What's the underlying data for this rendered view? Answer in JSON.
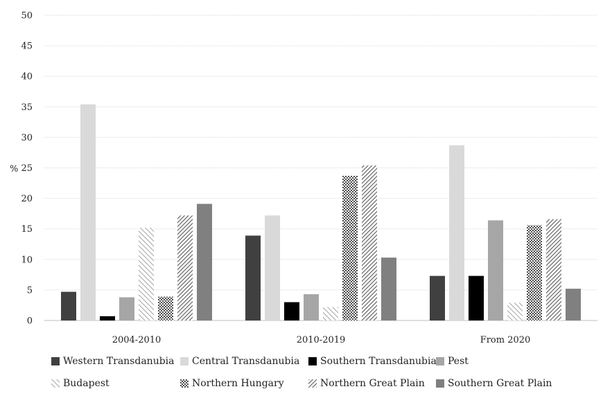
{
  "chart_data": {
    "type": "bar",
    "ylabel": "%",
    "ylim": [
      0,
      50
    ],
    "yticks": [
      0,
      5,
      10,
      15,
      20,
      25,
      30,
      35,
      40,
      45,
      50
    ],
    "grid": true,
    "legend_position": "bottom",
    "categories": [
      "2004-2010",
      "2010-2019",
      "From 2020"
    ],
    "series": [
      {
        "name": "Western Transdanubia",
        "values": [
          4.7,
          13.9,
          7.3
        ],
        "color": "#404040",
        "pattern": "solid"
      },
      {
        "name": "Central Transdanubia",
        "values": [
          35.4,
          17.2,
          28.7
        ],
        "color": "#d9d9d9",
        "pattern": "solid"
      },
      {
        "name": "Southern Transdanubia",
        "values": [
          0.7,
          3.0,
          7.3
        ],
        "color": "#000000",
        "pattern": "solid"
      },
      {
        "name": "Pest",
        "values": [
          3.8,
          4.3,
          16.4
        ],
        "color": "#a6a6a6",
        "pattern": "solid"
      },
      {
        "name": "Budapest",
        "values": [
          15.2,
          2.2,
          2.9
        ],
        "color": "#bfbfbf",
        "pattern": "diagonal-light"
      },
      {
        "name": "Northern Hungary",
        "values": [
          3.9,
          23.7,
          15.6
        ],
        "color": "#666666",
        "pattern": "dots"
      },
      {
        "name": "Northern Great Plain",
        "values": [
          17.2,
          25.4,
          16.6
        ],
        "color": "#8c8c8c",
        "pattern": "diagonal-dense"
      },
      {
        "name": "Southern Great Plain",
        "values": [
          19.1,
          10.3,
          5.2
        ],
        "color": "#808080",
        "pattern": "solid"
      }
    ]
  }
}
